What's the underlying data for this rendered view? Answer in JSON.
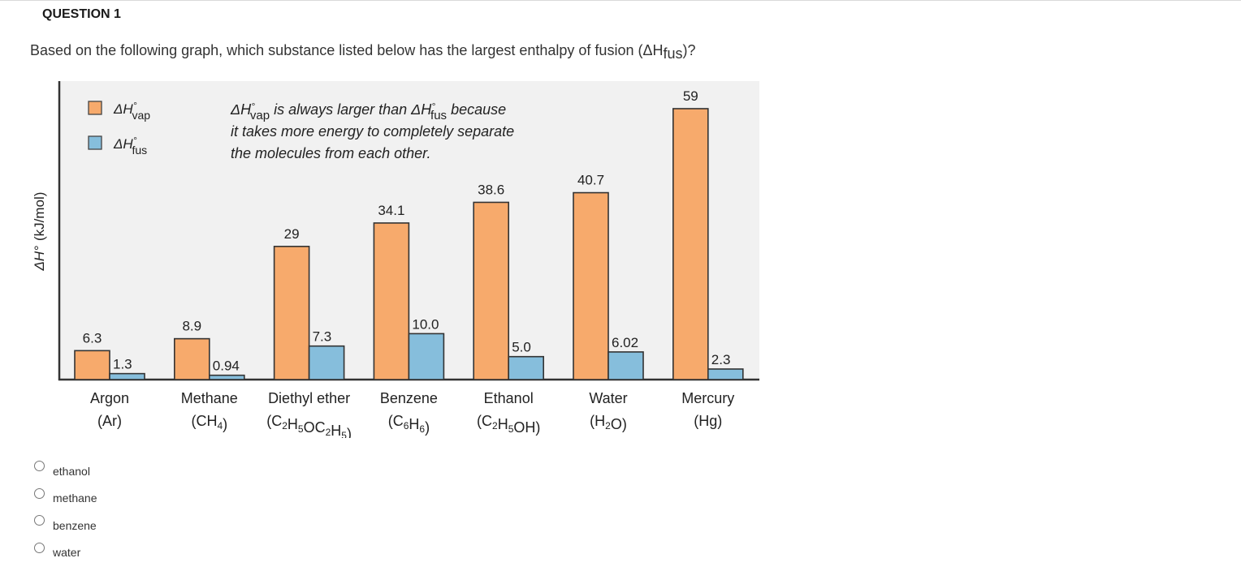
{
  "question": {
    "title": "QUESTION 1",
    "text_main": "Based on the following graph, which substance listed below has the largest enthalpy of fusion (ΔH",
    "text_sub": "fus",
    "text_end": ")?"
  },
  "chart_data": {
    "type": "bar",
    "ylabel_symbol": "ΔH°",
    "ylabel_units": "(kJ/mol)",
    "categories": [
      {
        "name": "Argon",
        "formula": [
          {
            "t": "(Ar)"
          }
        ]
      },
      {
        "name": "Methane",
        "formula": [
          {
            "t": "(CH"
          },
          {
            "s": "4"
          },
          {
            "t": ")"
          }
        ]
      },
      {
        "name": "Diethyl ether",
        "formula": [
          {
            "t": "(C"
          },
          {
            "s": "2"
          },
          {
            "t": "H"
          },
          {
            "s": "5"
          },
          {
            "t": "OC"
          },
          {
            "s": "2"
          },
          {
            "t": "H"
          },
          {
            "s": "5"
          },
          {
            "t": ")"
          }
        ]
      },
      {
        "name": "Benzene",
        "formula": [
          {
            "t": "(C"
          },
          {
            "s": "6"
          },
          {
            "t": "H"
          },
          {
            "s": "6"
          },
          {
            "t": ")"
          }
        ]
      },
      {
        "name": "Ethanol",
        "formula": [
          {
            "t": "(C"
          },
          {
            "s": "2"
          },
          {
            "t": "H"
          },
          {
            "s": "5"
          },
          {
            "t": "OH)"
          }
        ]
      },
      {
        "name": "Water",
        "formula": [
          {
            "t": "(H"
          },
          {
            "s": "2"
          },
          {
            "t": "O)"
          }
        ]
      },
      {
        "name": "Mercury",
        "formula": [
          {
            "t": "(Hg)"
          }
        ]
      }
    ],
    "series": [
      {
        "name": "vap",
        "color": "#f7aa6c",
        "values": [
          6.3,
          8.9,
          29,
          34.1,
          38.6,
          40.7,
          59
        ],
        "labels": [
          "6.3",
          "8.9",
          "29",
          "34.1",
          "38.6",
          "40.7",
          "59"
        ]
      },
      {
        "name": "fus",
        "color": "#86bedc",
        "values": [
          1.3,
          0.94,
          7.3,
          10.0,
          5.0,
          6.02,
          2.3
        ],
        "labels": [
          "1.3",
          "0.94",
          "7.3",
          "10.0",
          "5.0",
          "6.02",
          "2.3"
        ]
      }
    ],
    "legend": {
      "symbol": "ΔH",
      "degree": "°",
      "items": [
        {
          "sub": "vap",
          "color": "#f7aa6c"
        },
        {
          "sub": "fus",
          "color": "#86bedc"
        }
      ]
    },
    "annotation": {
      "symbol": "ΔH",
      "degree": "°",
      "sub_vap": "vap",
      "mid": " is always larger than ",
      "sub_fus": "fus",
      "end1": " because",
      "line2": "it takes more energy to completely separate",
      "line3": "the molecules from each other."
    },
    "ylim": [
      0,
      65
    ],
    "plot_background": "#f1f1f1",
    "grid": false,
    "legend_position": "top-left"
  },
  "options": [
    {
      "label": "ethanol"
    },
    {
      "label": "methane"
    },
    {
      "label": "benzene"
    },
    {
      "label": "water"
    }
  ]
}
